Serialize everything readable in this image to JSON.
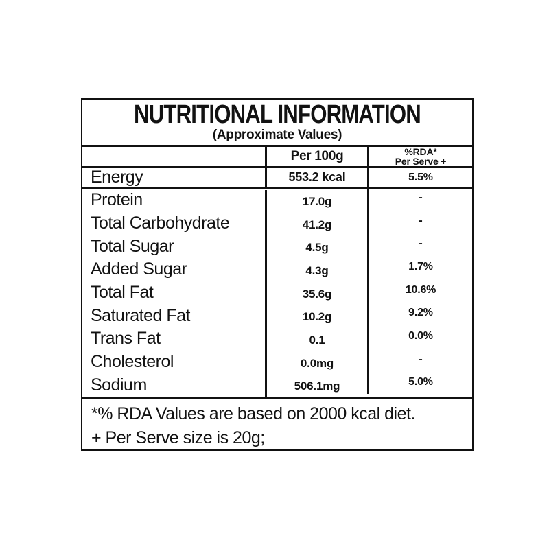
{
  "label": {
    "title": "NUTRITIONAL INFORMATION",
    "subtitle": "(Approximate Values)",
    "columns": {
      "per_100g": "Per 100g",
      "rda_line1": "%RDA*",
      "rda_line2": "Per Serve +"
    },
    "energy_row": {
      "name": "Energy",
      "per100g": "553.2 kcal",
      "rda": "5.5%"
    },
    "rows": [
      {
        "name": "Protein",
        "per100g": "17.0g",
        "rda": "-"
      },
      {
        "name": "Total Carbohydrate",
        "per100g": "41.2g",
        "rda": "-"
      },
      {
        "name": "Total Sugar",
        "per100g": "4.5g",
        "rda": "-"
      },
      {
        "name": "Added Sugar",
        "per100g": "4.3g",
        "rda": "1.7%"
      },
      {
        "name": "Total Fat",
        "per100g": "35.6g",
        "rda": "10.6%"
      },
      {
        "name": "Saturated Fat",
        "per100g": "10.2g",
        "rda": "9.2%"
      },
      {
        "name": "Trans Fat",
        "per100g": "0.1",
        "rda": "0.0%"
      },
      {
        "name": "Cholesterol",
        "per100g": "0.0mg",
        "rda": "-"
      },
      {
        "name": "Sodium",
        "per100g": "506.1mg",
        "rda": "5.0%"
      }
    ],
    "footnotes": [
      "*% RDA Values are based on 2000 kcal diet.",
      "+ Per Serve size is 20g;"
    ],
    "colors": {
      "ink": "#111111",
      "background": "#ffffff"
    }
  }
}
